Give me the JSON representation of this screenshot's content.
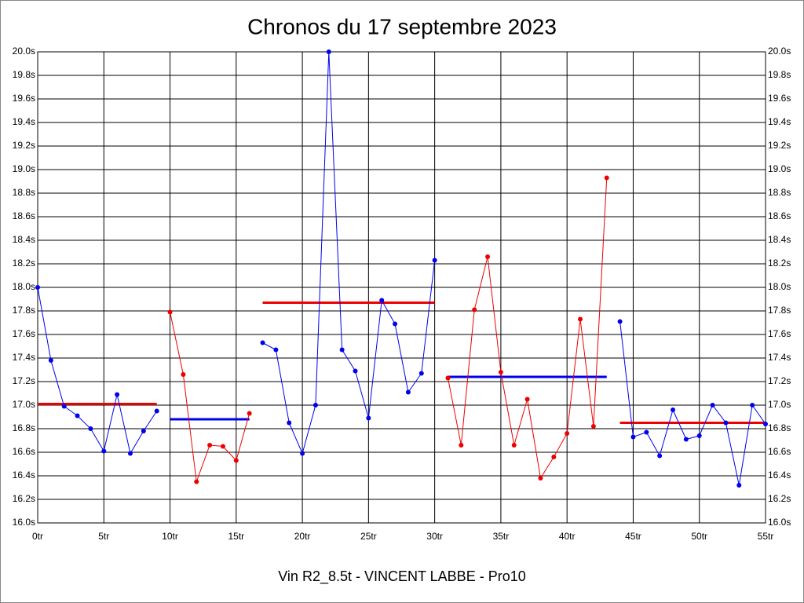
{
  "chart_data": {
    "type": "line",
    "title": "Chronos du 17 septembre 2023",
    "x_label": "Vin R2_8.5t - VINCENT LABBE - Pro10",
    "grid": true,
    "xlim": [
      0,
      55
    ],
    "ylim": [
      16.0,
      20.0
    ],
    "xticks": [
      {
        "value": 0,
        "label": "0tr"
      },
      {
        "value": 5,
        "label": "5tr"
      },
      {
        "value": 10,
        "label": "10tr"
      },
      {
        "value": 15,
        "label": "15tr"
      },
      {
        "value": 20,
        "label": "20tr"
      },
      {
        "value": 25,
        "label": "25tr"
      },
      {
        "value": 30,
        "label": "30tr"
      },
      {
        "value": 35,
        "label": "35tr"
      },
      {
        "value": 40,
        "label": "40tr"
      },
      {
        "value": 45,
        "label": "45tr"
      },
      {
        "value": 50,
        "label": "50tr"
      },
      {
        "value": 55,
        "label": "55tr"
      }
    ],
    "yticks": [
      {
        "value": 16.0,
        "label": "16.0s"
      },
      {
        "value": 16.2,
        "label": "16.2s"
      },
      {
        "value": 16.4,
        "label": "16.4s"
      },
      {
        "value": 16.6,
        "label": "16.6s"
      },
      {
        "value": 16.8,
        "label": "16.8s"
      },
      {
        "value": 17.0,
        "label": "17.0s"
      },
      {
        "value": 17.2,
        "label": "17.2s"
      },
      {
        "value": 17.4,
        "label": "17.4s"
      },
      {
        "value": 17.6,
        "label": "17.6s"
      },
      {
        "value": 17.8,
        "label": "17.8s"
      },
      {
        "value": 18.0,
        "label": "18.0s"
      },
      {
        "value": 18.2,
        "label": "18.2s"
      },
      {
        "value": 18.4,
        "label": "18.4s"
      },
      {
        "value": 18.6,
        "label": "18.6s"
      },
      {
        "value": 18.8,
        "label": "18.8s"
      },
      {
        "value": 19.0,
        "label": "19.0s"
      },
      {
        "value": 19.2,
        "label": "19.2s"
      },
      {
        "value": 19.4,
        "label": "19.4s"
      },
      {
        "value": 19.6,
        "label": "19.6s"
      },
      {
        "value": 19.8,
        "label": "19.8s"
      },
      {
        "value": 20.0,
        "label": "20.0s"
      }
    ],
    "series": [
      {
        "color": "#0000ee",
        "x": [
          0,
          1,
          2,
          3,
          4,
          5,
          6,
          7,
          8,
          9
        ],
        "values": [
          18.0,
          17.38,
          16.99,
          16.91,
          16.8,
          16.61,
          17.09,
          16.59,
          16.78,
          16.95
        ]
      },
      {
        "color": "#ee0000",
        "x": [
          10,
          11,
          12,
          13,
          14,
          15,
          16
        ],
        "values": [
          17.79,
          17.26,
          16.35,
          16.66,
          16.65,
          16.53,
          16.93
        ]
      },
      {
        "color": "#0000ee",
        "x": [
          17,
          18,
          19,
          20,
          21,
          22,
          23,
          24,
          25,
          26,
          27,
          28,
          29,
          30
        ],
        "values": [
          17.53,
          17.47,
          16.85,
          16.59,
          17.0,
          20.0,
          17.47,
          17.29,
          16.89,
          17.89,
          17.69,
          17.11,
          17.27,
          18.23
        ]
      },
      {
        "color": "#ee0000",
        "x": [
          31,
          32,
          33,
          34,
          35,
          36,
          37,
          38,
          39,
          40,
          41,
          42,
          43
        ],
        "values": [
          17.23,
          16.66,
          17.81,
          18.26,
          17.28,
          16.66,
          17.05,
          16.38,
          16.56,
          16.76,
          17.73,
          16.82,
          18.93
        ]
      },
      {
        "color": "#0000ee",
        "x": [
          44,
          45,
          46,
          47,
          48,
          49,
          50,
          51,
          52,
          53,
          54,
          55
        ],
        "values": [
          17.71,
          16.73,
          16.77,
          16.57,
          16.96,
          16.71,
          16.74,
          17.0,
          16.85,
          16.32,
          17.0,
          16.84
        ]
      }
    ],
    "means": [
      {
        "color": "#ee0000",
        "x": [
          0,
          9
        ],
        "value": 17.01
      },
      {
        "color": "#0000ee",
        "x": [
          10,
          16
        ],
        "value": 16.88
      },
      {
        "color": "#ee0000",
        "x": [
          17,
          30
        ],
        "value": 17.87
      },
      {
        "color": "#0000ee",
        "x": [
          31,
          43
        ],
        "value": 17.24
      },
      {
        "color": "#ee0000",
        "x": [
          44,
          55
        ],
        "value": 16.85
      }
    ]
  }
}
